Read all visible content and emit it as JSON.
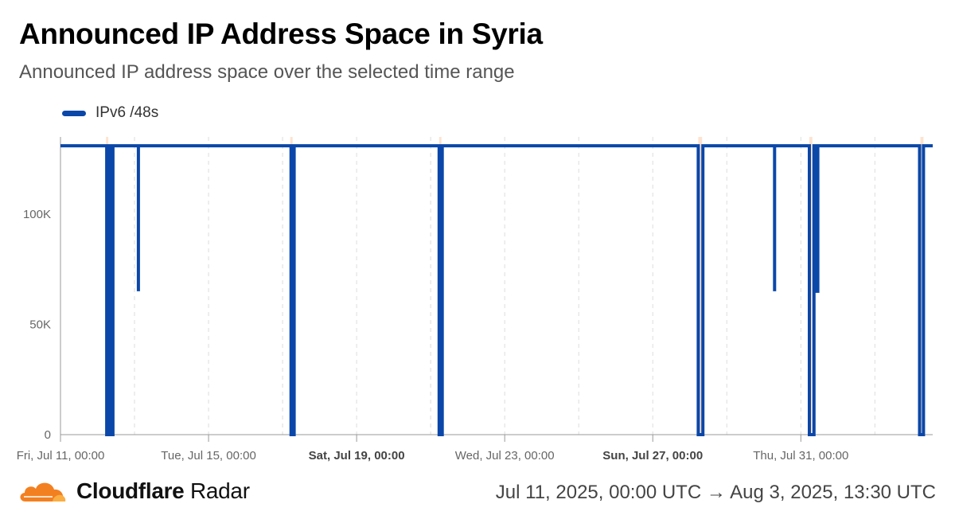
{
  "header": {
    "title": "Announced IP Address Space in Syria",
    "subtitle": "Announced IP address space over the selected time range"
  },
  "footer": {
    "brand_main": "Cloudflare",
    "brand_suffix": "Radar",
    "date_range": "Jul 11, 2025, 00:00 UTC → Aug 3, 2025, 13:30 UTC"
  },
  "colors": {
    "series": "#0a47a9",
    "highlight": "#fde3cf",
    "grid": "#dddddd",
    "axis": "#999999"
  },
  "chart_data": {
    "type": "line",
    "title": "Announced IP Address Space in Syria",
    "subtitle": "Announced IP address space over the selected time range",
    "xlabel": "",
    "ylabel": "",
    "x_start": "2025-07-11T00:00",
    "x_end": "2025-08-03T13:30",
    "ylim": [
      0,
      135000
    ],
    "legend_position": "top-left",
    "grid": "vertical dashed",
    "y_ticks": [
      {
        "value": 0,
        "label": "0"
      },
      {
        "value": 50000,
        "label": "50K"
      },
      {
        "value": 100000,
        "label": "100K"
      }
    ],
    "x_ticks": [
      {
        "x": "2025-07-11T00:00",
        "label": "Fri, Jul 11, 00:00",
        "bold": false
      },
      {
        "x": "2025-07-15T00:00",
        "label": "Tue, Jul 15, 00:00",
        "bold": false
      },
      {
        "x": "2025-07-19T00:00",
        "label": "Sat, Jul 19, 00:00",
        "bold": true
      },
      {
        "x": "2025-07-23T00:00",
        "label": "Wed, Jul 23, 00:00",
        "bold": false
      },
      {
        "x": "2025-07-27T00:00",
        "label": "Sun, Jul 27, 00:00",
        "bold": true
      },
      {
        "x": "2025-07-31T00:00",
        "label": "Thu, Jul 31, 00:00",
        "bold": false
      }
    ],
    "grid_x": [
      "2025-07-13T00:00",
      "2025-07-15T00:00",
      "2025-07-17T00:00",
      "2025-07-19T00:00",
      "2025-07-21T00:00",
      "2025-07-23T00:00",
      "2025-07-25T00:00",
      "2025-07-27T00:00",
      "2025-07-29T00:00",
      "2025-07-31T00:00",
      "2025-08-02T00:00"
    ],
    "highlights": [
      {
        "start": "2025-07-12T05:30",
        "end": "2025-07-12T07:00"
      },
      {
        "start": "2025-07-17T05:00",
        "end": "2025-07-17T06:30"
      },
      {
        "start": "2025-07-21T05:30",
        "end": "2025-07-21T07:00"
      },
      {
        "start": "2025-07-28T05:30",
        "end": "2025-07-28T08:00"
      },
      {
        "start": "2025-07-31T05:30",
        "end": "2025-07-31T07:30"
      },
      {
        "start": "2025-08-03T05:30",
        "end": "2025-08-03T07:30"
      }
    ],
    "series": [
      {
        "name": "IPv6 /48s",
        "points": [
          [
            "2025-07-11T00:00",
            131000
          ],
          [
            "2025-07-12T06:00",
            131000
          ],
          [
            "2025-07-12T06:00",
            0
          ],
          [
            "2025-07-12T07:30",
            0
          ],
          [
            "2025-07-12T07:30",
            131000
          ],
          [
            "2025-07-12T08:30",
            131000
          ],
          [
            "2025-07-12T08:30",
            0
          ],
          [
            "2025-07-12T10:00",
            0
          ],
          [
            "2025-07-12T10:00",
            131000
          ],
          [
            "2025-07-13T02:30",
            131000
          ],
          [
            "2025-07-13T02:30",
            65000
          ],
          [
            "2025-07-13T02:30",
            131000
          ],
          [
            "2025-07-17T05:30",
            131000
          ],
          [
            "2025-07-17T05:30",
            0
          ],
          [
            "2025-07-17T07:30",
            0
          ],
          [
            "2025-07-17T07:30",
            131000
          ],
          [
            "2025-07-21T05:30",
            131000
          ],
          [
            "2025-07-21T05:30",
            0
          ],
          [
            "2025-07-21T07:30",
            0
          ],
          [
            "2025-07-21T07:30",
            131000
          ],
          [
            "2025-07-28T05:30",
            131000
          ],
          [
            "2025-07-28T05:30",
            0
          ],
          [
            "2025-07-28T08:30",
            0
          ],
          [
            "2025-07-28T08:30",
            131000
          ],
          [
            "2025-07-30T07:00",
            131000
          ],
          [
            "2025-07-30T07:00",
            65000
          ],
          [
            "2025-07-30T07:00",
            131000
          ],
          [
            "2025-07-31T05:30",
            131000
          ],
          [
            "2025-07-31T05:30",
            0
          ],
          [
            "2025-07-31T08:30",
            0
          ],
          [
            "2025-07-31T08:30",
            131000
          ],
          [
            "2025-07-31T09:00",
            131000
          ],
          [
            "2025-07-31T09:00",
            65000
          ],
          [
            "2025-07-31T11:00",
            65000
          ],
          [
            "2025-07-31T11:00",
            131000
          ],
          [
            "2025-08-03T05:00",
            131000
          ],
          [
            "2025-08-03T05:00",
            0
          ],
          [
            "2025-08-03T07:30",
            0
          ],
          [
            "2025-08-03T07:30",
            131000
          ],
          [
            "2025-08-03T13:30",
            131000
          ]
        ]
      }
    ]
  }
}
